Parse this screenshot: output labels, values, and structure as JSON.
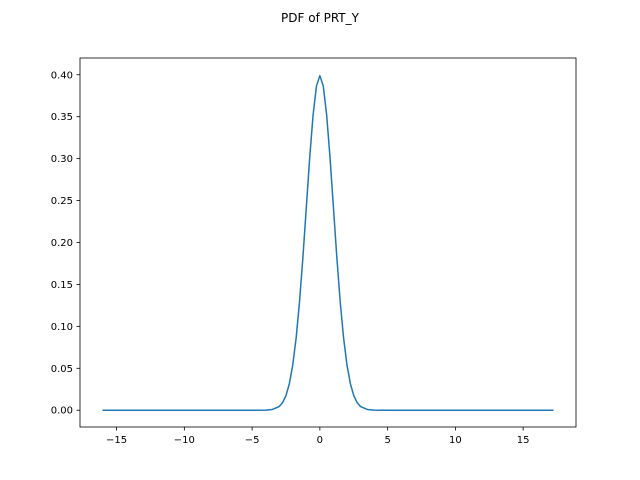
{
  "chart_data": {
    "type": "line",
    "title": "PDF of PRT_Y",
    "xlabel": "",
    "ylabel": "",
    "xlim": [
      -17.7,
      18.9
    ],
    "ylim": [
      -0.02,
      0.42
    ],
    "xticks": [
      -15,
      -10,
      -5,
      0,
      5,
      10,
      15
    ],
    "xtick_labels": [
      "−15",
      "−10",
      "−5",
      "0",
      "5",
      "10",
      "15"
    ],
    "yticks": [
      0.0,
      0.05,
      0.1,
      0.15,
      0.2,
      0.25,
      0.3,
      0.35,
      0.4
    ],
    "ytick_labels": [
      "0.00",
      "0.05",
      "0.10",
      "0.15",
      "0.20",
      "0.25",
      "0.30",
      "0.35",
      "0.40"
    ],
    "grid": false,
    "legend": "none",
    "series": [
      {
        "color": "#1f77b4",
        "x": [
          -16,
          -10,
          -5,
          -4,
          -3.5,
          -3,
          -2.75,
          -2.5,
          -2.25,
          -2,
          -1.75,
          -1.5,
          -1.25,
          -1,
          -0.75,
          -0.5,
          -0.25,
          0,
          0.25,
          0.5,
          0.75,
          1,
          1.25,
          1.5,
          1.75,
          2,
          2.25,
          2.5,
          2.75,
          3,
          3.5,
          4,
          5,
          10,
          17.2
        ],
        "y": [
          0.0,
          0.0,
          0.0,
          0.0001,
          0.0009,
          0.0044,
          0.0091,
          0.0175,
          0.0317,
          0.054,
          0.0863,
          0.1295,
          0.1826,
          0.242,
          0.3011,
          0.3521,
          0.3867,
          0.3989,
          0.3867,
          0.3521,
          0.3011,
          0.242,
          0.1826,
          0.1295,
          0.0863,
          0.054,
          0.0317,
          0.0175,
          0.0091,
          0.0044,
          0.0009,
          0.0001,
          0.0,
          0.0,
          0.0
        ]
      }
    ]
  }
}
